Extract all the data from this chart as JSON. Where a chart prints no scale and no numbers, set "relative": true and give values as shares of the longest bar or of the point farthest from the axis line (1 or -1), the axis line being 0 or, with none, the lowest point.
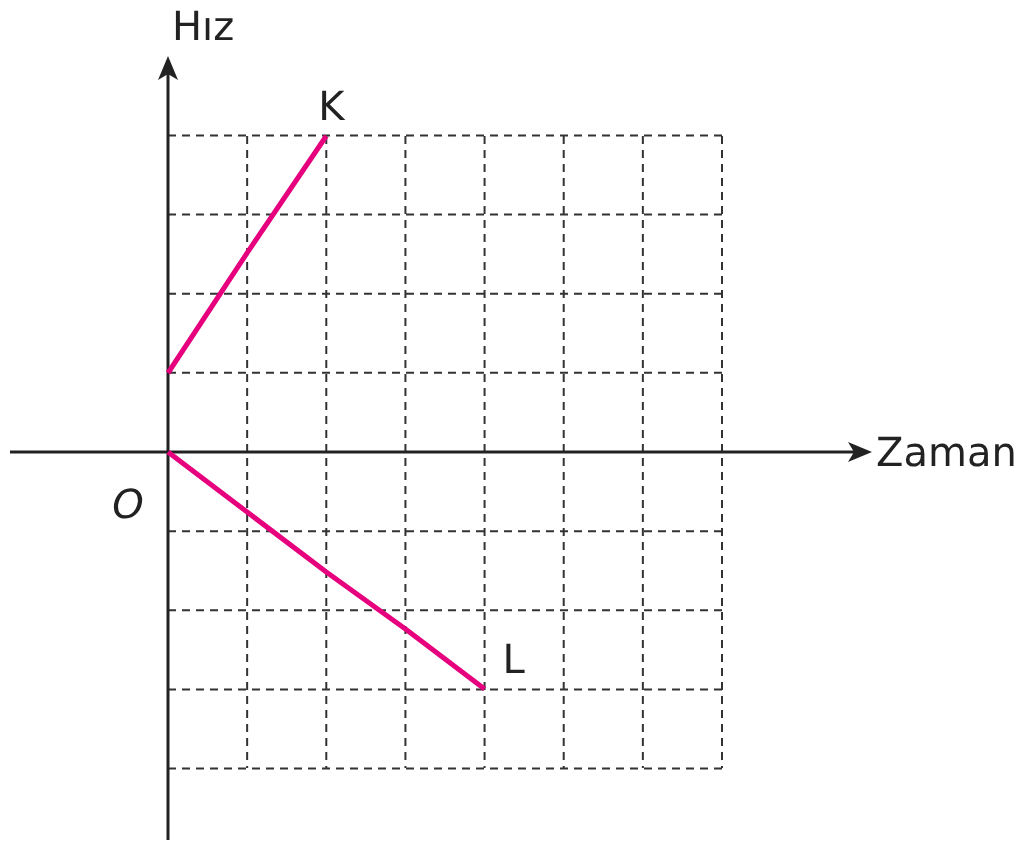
{
  "chart_data": {
    "type": "line",
    "xlabel": "Zaman",
    "ylabel": "Hız",
    "relative": true,
    "grid": true,
    "categories": [
      null,
      null,
      null,
      null,
      null,
      null,
      null,
      null
    ],
    "series": [
      {
        "name": "K",
        "color": "#e6007e",
        "values": [
          0.25,
          0.63,
          1,
          null,
          null,
          null,
          null,
          null
        ]
      },
      {
        "name": "L",
        "color": "#e6007e",
        "values": [
          0,
          -0.19,
          -0.38,
          -0.56,
          -0.75,
          null,
          null,
          null
        ]
      }
    ],
    "annotations": [
      "O"
    ]
  }
}
